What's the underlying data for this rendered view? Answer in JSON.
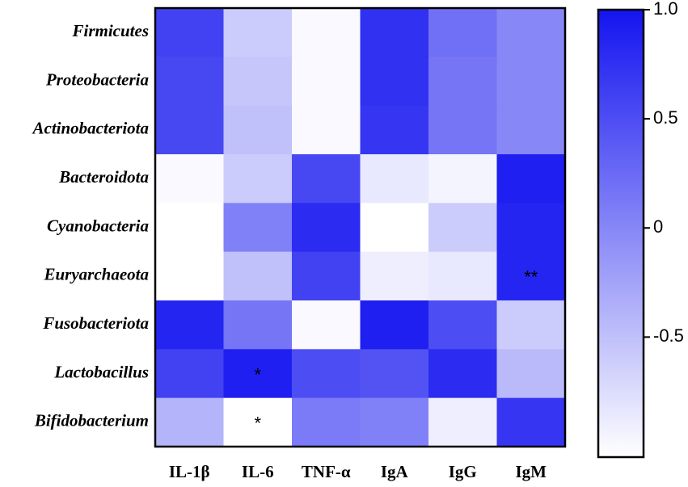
{
  "chart_data": {
    "type": "heatmap",
    "rows": [
      "Firmicutes",
      "Proteobacteria",
      "Actinobacteriota",
      "Bacteroidota",
      "Cyanobacteria",
      "Euryarchaeota",
      "Fusobacteriota",
      "Lactobacillus",
      "Bifidobacterium"
    ],
    "columns": [
      "IL-1β",
      "IL-6",
      "TNF-α",
      "IgA",
      "IgG",
      "IgM"
    ],
    "values": [
      [
        0.6,
        -0.6,
        -1.0,
        0.75,
        0.2,
        0.0
      ],
      [
        0.55,
        -0.55,
        -1.0,
        0.75,
        0.15,
        0.0
      ],
      [
        0.55,
        -0.5,
        -1.0,
        0.7,
        0.15,
        0.0
      ],
      [
        -1.0,
        -0.6,
        0.55,
        -0.85,
        -0.95,
        0.9
      ],
      [
        -1.05,
        0.05,
        0.8,
        -1.05,
        -0.6,
        0.85
      ],
      [
        -1.05,
        -0.5,
        0.6,
        -0.9,
        -0.85,
        0.85
      ],
      [
        0.85,
        0.15,
        -1.0,
        0.9,
        0.5,
        -0.6
      ],
      [
        0.6,
        0.9,
        0.5,
        0.45,
        0.8,
        -0.45
      ],
      [
        -0.4,
        -1.05,
        0.1,
        0.05,
        -0.9,
        0.7
      ]
    ],
    "cell_labels": [
      [
        null,
        null,
        null,
        null,
        null,
        null
      ],
      [
        null,
        null,
        null,
        null,
        null,
        null
      ],
      [
        null,
        null,
        null,
        null,
        null,
        null
      ],
      [
        null,
        null,
        null,
        null,
        null,
        null
      ],
      [
        null,
        null,
        null,
        null,
        null,
        null
      ],
      [
        null,
        null,
        null,
        null,
        null,
        "**"
      ],
      [
        null,
        null,
        null,
        null,
        null,
        null
      ],
      [
        null,
        "*",
        null,
        null,
        null,
        null
      ],
      [
        null,
        "*",
        null,
        null,
        null,
        null
      ]
    ],
    "colormap": [
      "#ffffff",
      "#1414f0"
    ],
    "zlim": [
      -1.05,
      1.0
    ],
    "zticks": [
      {
        "value": 1.0,
        "label": "1.0"
      },
      0.5,
      0,
      -0.5
    ]
  }
}
